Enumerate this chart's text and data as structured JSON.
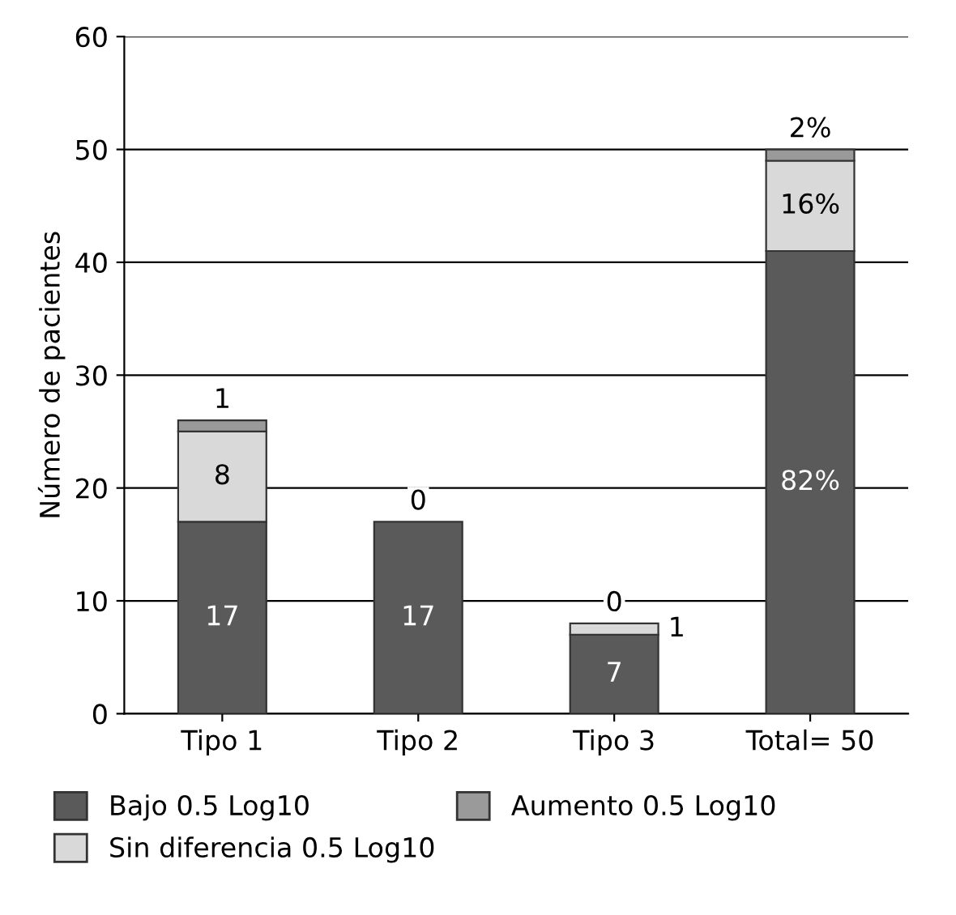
{
  "chart_data": {
    "type": "bar",
    "stacked": true,
    "ylabel": "Número de pacientes",
    "categories": [
      "Tipo 1",
      "Tipo 2",
      "Tipo 3",
      "Total= 50"
    ],
    "series": [
      {
        "name": "Bajo 0.5 Log10",
        "color": "#5a5a5a",
        "values": [
          17,
          17,
          7,
          41
        ],
        "value_labels": [
          "17",
          "17",
          "7",
          null
        ]
      },
      {
        "name": "Sin diferencia 0.5 Log10",
        "color": "#d9d9d9",
        "values": [
          8,
          0,
          1,
          8
        ],
        "value_labels": [
          "8",
          null,
          "1",
          null
        ]
      },
      {
        "name": "Aumento 0.5 Log10",
        "color": "#9a9a9a",
        "values": [
          1,
          0,
          0,
          1
        ],
        "value_labels": [
          "1",
          "0",
          "0",
          null
        ]
      }
    ],
    "annotations": [
      "82%",
      "16%",
      "2%"
    ],
    "ylim": [
      0,
      60
    ],
    "yticks": [
      0,
      10,
      20,
      30,
      40,
      50,
      60
    ],
    "grid": "y",
    "legend": "bottom"
  }
}
